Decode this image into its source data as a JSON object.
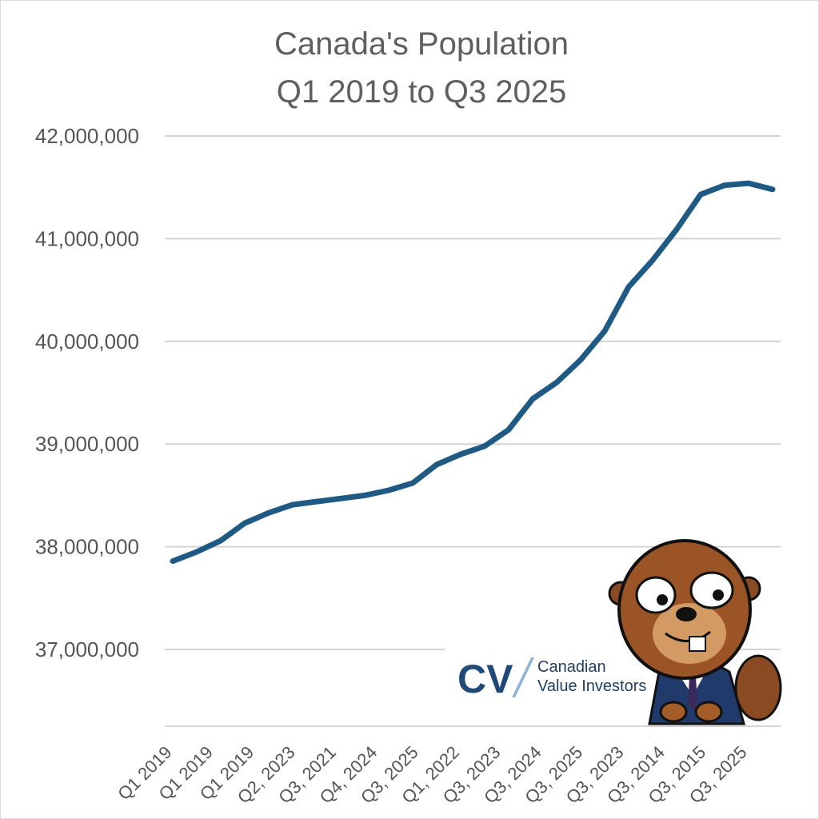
{
  "chart_data": {
    "type": "line",
    "title": [
      "Canada's Population",
      "Q1 2019 to Q3 2025"
    ],
    "xlabel": "",
    "ylabel": "",
    "ylim": [
      36300000,
      42000000
    ],
    "yticks": [
      42000000,
      41000000,
      40000000,
      39000000,
      38000000,
      37000000
    ],
    "ytick_labels": [
      "42,000,000",
      "41,000,000",
      "40,000,000",
      "39,000,000",
      "38,000,000",
      "37,000,000"
    ],
    "xtick_labels": [
      "Q1 2019",
      "Q1 2019",
      "Q1 2019",
      "Q2, 2023",
      "Q3, 2021",
      "Q4, 2024",
      "Q3, 2025",
      "Q1, 2022",
      "Q3, 2023",
      "Q3, 2024",
      "Q3, 2025",
      "Q3, 2023",
      "Q3, 2014",
      "Q3, 2015",
      "Q3, 2025"
    ],
    "grid": true,
    "legend": "none",
    "line_color": "#1f5a85",
    "series": [
      {
        "values": [
          37860000,
          37950000,
          38060000,
          38230000,
          38330000,
          38410000,
          38440000,
          38470000,
          38500000,
          38550000,
          38620000,
          38800000,
          38900000,
          38980000,
          39140000,
          39440000,
          39600000,
          39820000,
          40100000,
          40530000,
          40790000,
          41090000,
          41430000,
          41520000,
          41540000,
          41480000
        ]
      }
    ]
  },
  "branding": {
    "logo_mark": "CV",
    "name_line1": "Canadian",
    "name_line2": "Value Investors",
    "mascot": "beaver-in-suit-icon"
  }
}
